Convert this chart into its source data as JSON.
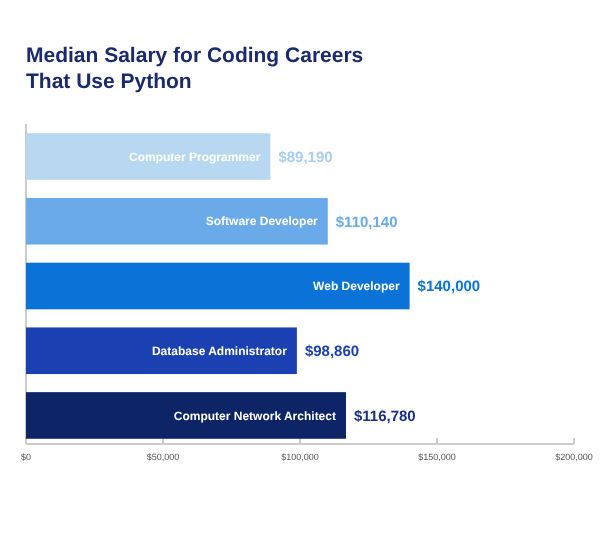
{
  "chart_data": {
    "type": "bar",
    "orientation": "horizontal",
    "title": "Median Salary for Coding Careers That Use Python",
    "categories": [
      "Computer Programmer",
      "Software Developer",
      "Web Developer",
      "Database Administrator",
      "Computer Network Architect"
    ],
    "values": [
      89190,
      110140,
      140000,
      98860,
      116780
    ],
    "colors": [
      "#b8d8f2",
      "#6aaae9",
      "#0b73d7",
      "#1b40b2",
      "#0d2467"
    ],
    "value_labels": [
      "$89,190",
      "$110,140",
      "$140,000",
      "$98,860",
      "$116,780"
    ],
    "xlim": [
      0,
      200000
    ],
    "xticks": [
      {
        "value": 0,
        "label": "$0"
      },
      {
        "value": 50000,
        "label": "$50,000"
      },
      {
        "value": 100000,
        "label": "$100,000"
      },
      {
        "value": 150000,
        "label": "$150,000"
      },
      {
        "value": 200000,
        "label": "$200,000"
      }
    ],
    "grid": false
  }
}
